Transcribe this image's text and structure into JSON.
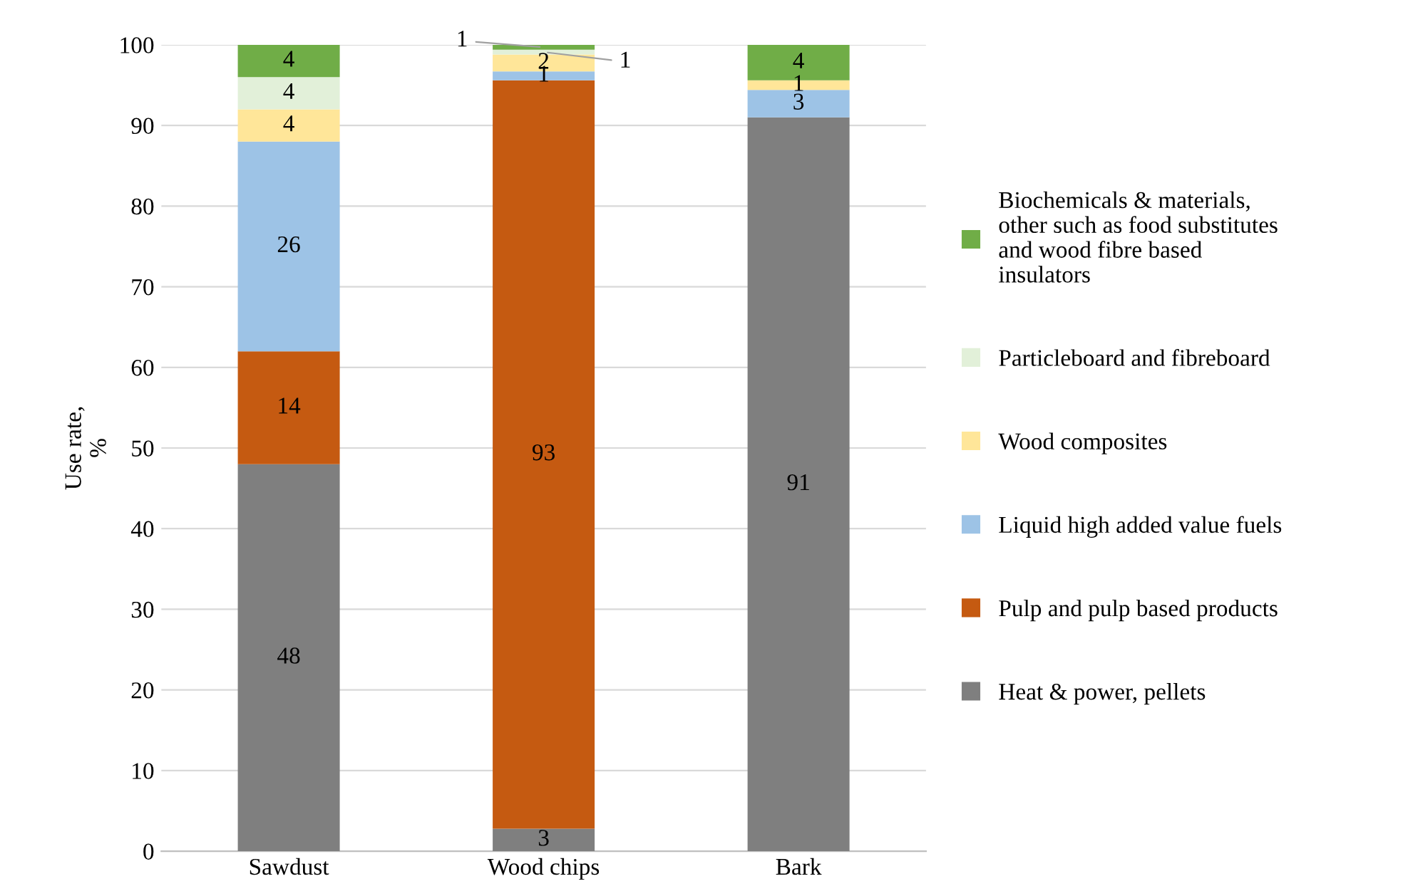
{
  "chart_data": {
    "type": "bar",
    "stacked": true,
    "ylabel": "Use rate,\n%",
    "categories": [
      "Sawdust",
      "Wood chips",
      "Bark"
    ],
    "series": [
      {
        "name": "Heat & power, pellets",
        "color": "#7f7f7f",
        "values": [
          48,
          2.8,
          91
        ],
        "value_labels": [
          "48",
          "3",
          "91"
        ]
      },
      {
        "name": "Pulp and pulp based products",
        "color": "#c55a11",
        "values": [
          14,
          92.8,
          0
        ],
        "value_labels": [
          "14",
          "93",
          null
        ]
      },
      {
        "name": "Liquid high added value fuels",
        "color": "#9dc3e6",
        "values": [
          26,
          1.1,
          3.4
        ],
        "value_labels": [
          "26",
          "1",
          "3"
        ]
      },
      {
        "name": "Wood composites",
        "color": "#ffe699",
        "values": [
          4,
          2.1,
          1.2
        ],
        "value_labels": [
          "4",
          "2",
          "1"
        ]
      },
      {
        "name": "Particleboard and fibreboard",
        "color": "#e2f0d9",
        "values": [
          4,
          0.6,
          0
        ],
        "value_labels": [
          "4",
          "1",
          null
        ]
      },
      {
        "name": "Biochemicals & materials,\nother such as food substitutes\nand wood fibre based\ninsulators",
        "color": "#70ad47",
        "values": [
          4,
          0.6,
          4.4
        ],
        "value_labels": [
          "4",
          "1",
          "4"
        ]
      }
    ],
    "ylim": [
      0,
      100
    ],
    "yticks": [
      0,
      10,
      20,
      30,
      40,
      50,
      60,
      70,
      80,
      90,
      100
    ],
    "grid": "y",
    "legend": "right"
  }
}
